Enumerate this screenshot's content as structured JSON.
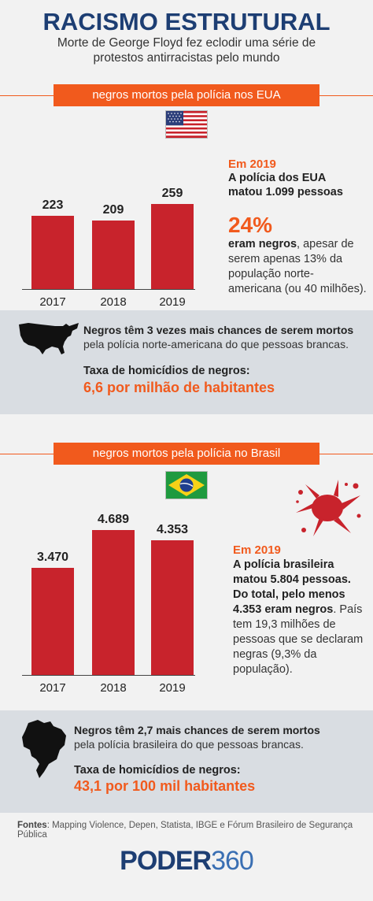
{
  "header": {
    "title": "RACISMO ESTRUTURAL",
    "subtitle": "Morte de George Floyd fez eclodir uma série de protestos antirracistas pelo mundo"
  },
  "usa": {
    "banner": "negros mortos pela polícia nos EUA",
    "flag_icon": "us-flag-icon",
    "year_label": "Em 2019",
    "killed_text": "A polícia dos EUA matou 1.099 pessoas",
    "percent": "24%",
    "percent_bold": "eram negros",
    "percent_rest": ", apesar de serem apenas 13% da população norte-americana (ou 40 milhões).",
    "panel": {
      "icon": "usa-map-icon",
      "chance_bold": "Negros têm 3 vezes mais chances de serem mortos",
      "chance_rest": "pela polícia norte-americana do que pessoas brancas.",
      "rate_label": "Taxa de homicídios de negros:",
      "rate_value": "6,6 por milhão de habitantes"
    }
  },
  "brazil": {
    "banner": "negros mortos pela polícia no Brasil",
    "flag_icon": "brazil-flag-icon",
    "splatter_icon": "blood-splatter-icon",
    "year_label": "Em 2019",
    "killed_text": "A polícia brasileira matou 5.804 pessoas. Do total, pelo menos 4.353 eram negros",
    "rest": ". País tem 19,3 milhões de pessoas que se declaram negras (9,3% da população).",
    "panel": {
      "icon": "brazil-map-icon",
      "chance_bold": "Negros têm 2,7 mais chances de serem mortos",
      "chance_rest": "pela polícia brasileira do que pessoas brancas.",
      "rate_label": "Taxa de homicídios de negros:",
      "rate_value": "43,1 por 100 mil habitantes"
    }
  },
  "footer": {
    "sources_label": "Fontes",
    "sources_text": ": Mapping Violence, Depen, Statista, IBGE e Fórum Brasileiro de Segurança Pública",
    "logo_part1": "PODER",
    "logo_part2": "360"
  },
  "colors": {
    "title_blue": "#1d3e73",
    "accent_orange": "#f15a1d",
    "bar_red": "#c8232c",
    "panel_gray": "#d9dde2"
  },
  "chart_data": [
    {
      "type": "bar",
      "categories": [
        "2017",
        "2018",
        "2019"
      ],
      "values": [
        223,
        209,
        259
      ],
      "value_labels": [
        "223",
        "209",
        "259"
      ],
      "title": "negros mortos pela polícia nos EUA",
      "ylim": [
        0,
        300
      ],
      "grid": false
    },
    {
      "type": "bar",
      "categories": [
        "2017",
        "2018",
        "2019"
      ],
      "values": [
        3470,
        4689,
        4353
      ],
      "value_labels": [
        "3.470",
        "4.689",
        "4.353"
      ],
      "title": "negros mortos pela polícia no Brasil",
      "ylim": [
        0,
        5000
      ],
      "grid": false
    }
  ]
}
